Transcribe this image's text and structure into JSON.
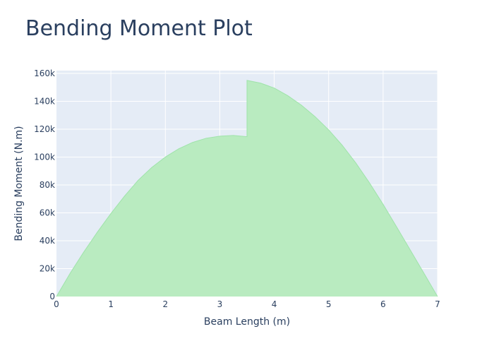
{
  "chart_data": {
    "type": "area",
    "title": "Bending Moment Plot",
    "xlabel": "Beam Length (m)",
    "ylabel": "Bending Moment (N.m)",
    "xlim": [
      0,
      7
    ],
    "ylim": [
      0,
      162000
    ],
    "grid": true,
    "x_ticks": [
      0,
      1,
      2,
      3,
      4,
      5,
      6,
      7
    ],
    "x_tick_labels": [
      "0",
      "1",
      "2",
      "3",
      "4",
      "5",
      "6",
      "7"
    ],
    "y_ticks": [
      0,
      20000,
      40000,
      60000,
      80000,
      100000,
      120000,
      140000,
      160000
    ],
    "y_tick_labels": [
      "0",
      "20k",
      "40k",
      "60k",
      "80k",
      "100k",
      "120k",
      "140k",
      "160k"
    ],
    "colors": {
      "fill": "#b9ebc0",
      "line": "#9fe3aa",
      "plot_bg": "#e5ecf6",
      "grid": "#ffffff",
      "text": "#2a3f5f"
    },
    "series": [
      {
        "x": [
          0,
          0.25,
          0.5,
          0.75,
          1,
          1.25,
          1.5,
          1.75,
          2,
          2.25,
          2.5,
          2.75,
          3,
          3.25,
          3.5,
          3.5,
          3.75,
          4,
          4.25,
          4.5,
          4.75,
          5,
          5.25,
          5.5,
          5.75,
          6,
          6.25,
          6.5,
          6.75,
          7
        ],
        "y": [
          0,
          16600,
          31800,
          46100,
          59500,
          72000,
          83300,
          92500,
          100000,
          106000,
          110500,
          113500,
          115000,
          115500,
          114600,
          155000,
          153000,
          149500,
          144000,
          137200,
          129000,
          119500,
          108400,
          95700,
          81500,
          66100,
          49800,
          33300,
          16700,
          0
        ]
      }
    ]
  }
}
